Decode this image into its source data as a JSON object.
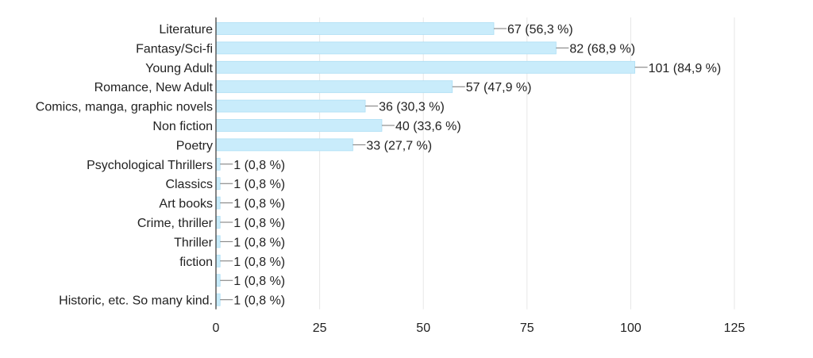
{
  "chart_data": {
    "type": "bar",
    "orientation": "horizontal",
    "categories": [
      "Literature",
      "Fantasy/Sci-fi",
      "Young Adult",
      "Romance, New Adult",
      "Comics, manga, graphic novels",
      "Non fiction",
      "Poetry",
      "Psychological Thrillers",
      "Classics",
      "Art books",
      "Crime, thriller",
      "Thriller",
      "fiction",
      "",
      "Historic, etc. So many kind."
    ],
    "values": [
      67,
      82,
      101,
      57,
      36,
      40,
      33,
      1,
      1,
      1,
      1,
      1,
      1,
      1,
      1
    ],
    "data_labels": [
      "67 (56,3 %)",
      "82 (68,9 %)",
      "101 (84,9 %)",
      "57 (47,9 %)",
      "36 (30,3 %)",
      "40 (33,6 %)",
      "33 (27,7 %)",
      "1 (0,8 %)",
      "1 (0,8 %)",
      "1 (0,8 %)",
      "1 (0,8 %)",
      "1 (0,8 %)",
      "1 (0,8 %)",
      "1 (0,8 %)",
      "1 (0,8 %)"
    ],
    "x_ticks": [
      0,
      25,
      50,
      75,
      100,
      125
    ],
    "xlim": [
      0,
      125
    ],
    "title": "",
    "xlabel": "",
    "ylabel": "",
    "grid": true,
    "legend": "none",
    "colors": {
      "bar": "#c9ecfb",
      "bar_stroke": "#aedff5",
      "grid": "#e6e6e6",
      "axis": "#333333",
      "text": "#222222",
      "leader": "#777777"
    }
  }
}
